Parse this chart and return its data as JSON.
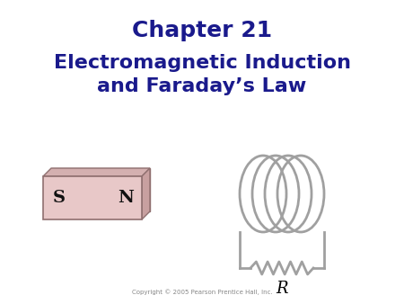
{
  "title1": "Chapter 21",
  "title2": "Electromagnetic Induction\nand Faraday’s Law",
  "title1_color": "#1a1a8c",
  "title2_color": "#1a1a8c",
  "bg_color": "#ffffff",
  "copyright": "Copyright © 2005 Pearson Prentice Hall, Inc.",
  "magnet_color": "#e8c8c8",
  "magnet_top_color": "#d4b0b0",
  "magnet_right_color": "#c8a0a0",
  "magnet_edge_color": "#907070",
  "coil_color": "#a0a0a0",
  "S_label": "S",
  "N_label": "N",
  "R_label": "R",
  "title1_fontsize": 18,
  "title2_fontsize": 16
}
